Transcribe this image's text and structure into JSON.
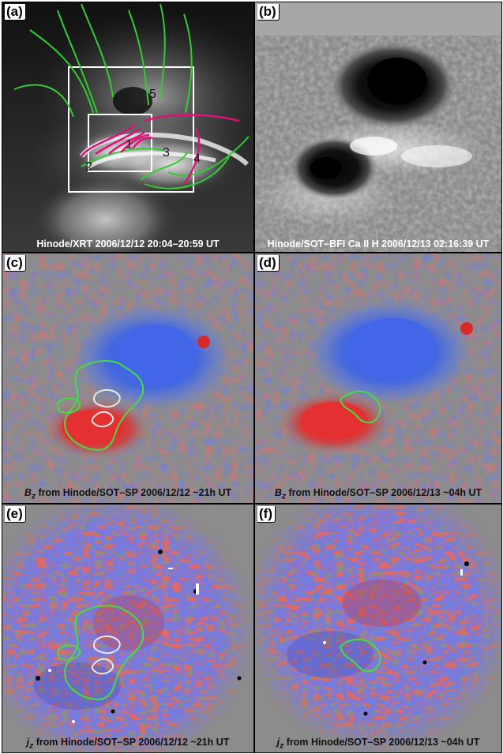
{
  "panels": {
    "a": {
      "label": "(a)",
      "caption": "Hinode/XRT 2006/12/12   20:04–20:59 UT",
      "loop_numbers": [
        "1",
        "2",
        "3",
        "4",
        "5"
      ]
    },
    "b": {
      "label": "(b)",
      "caption": "Hinode/SOT–BFI Ca II H 2006/12/13 02:16:39 UT"
    },
    "c": {
      "label": "(c)",
      "var": "B",
      "sub": "z",
      "caption": "  from Hinode/SOT–SP  2006/12/12 ~21h UT"
    },
    "d": {
      "label": "(d)",
      "var": "B",
      "sub": "z",
      "caption": "  from Hinode/SOT–SP  2006/12/13 ~04h UT"
    },
    "e": {
      "label": "(e)",
      "var": "j",
      "sub": "z",
      "caption": "  from Hinode/SOT–SP  2006/12/12 ~21h UT"
    },
    "f": {
      "label": "(f)",
      "var": "j",
      "sub": "z",
      "caption": "  from Hinode/SOT–SP  2006/12/13 ~04h UT"
    }
  },
  "colors": {
    "field_line_open": "#33cc33",
    "field_line_closed": "#dd1177",
    "positive": "#e02020",
    "negative": "#2030d0",
    "contour_green": "#44dd44",
    "contour_white": "#e8e8e8",
    "background_gray": "#8c8c8c"
  }
}
